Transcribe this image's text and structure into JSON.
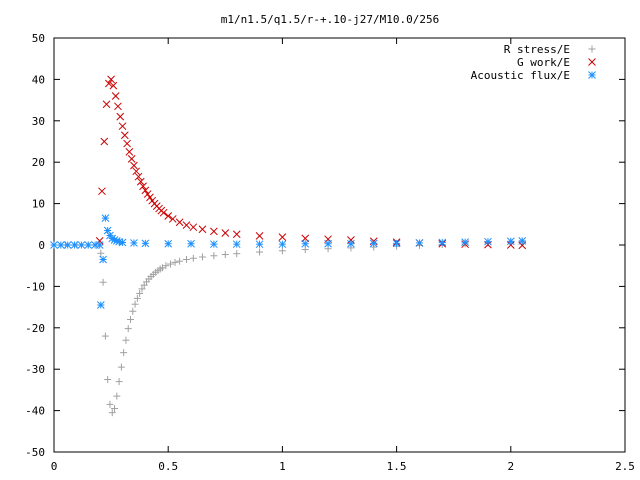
{
  "chart_data": {
    "type": "scatter",
    "title": "m1/n1.5/q1.5/r-+.10-j27/M10.0/256",
    "xlim": [
      0,
      2.5
    ],
    "ylim": [
      -50,
      50
    ],
    "x_ticks": [
      "0",
      "0.5",
      "1",
      "1.5",
      "2",
      "2.5"
    ],
    "y_ticks": [
      "50",
      "40",
      "30",
      "20",
      "10",
      "0",
      "-10",
      "-20",
      "-30",
      "-40",
      "-50"
    ],
    "grid": false,
    "legend_position": "top-right",
    "series": [
      {
        "name": "R stress/E",
        "marker": "+",
        "color": "#a0a0a0",
        "x": [
          0.0,
          0.05,
          0.1,
          0.15,
          0.2,
          0.205,
          0.215,
          0.225,
          0.235,
          0.245,
          0.255,
          0.265,
          0.275,
          0.285,
          0.295,
          0.305,
          0.315,
          0.325,
          0.335,
          0.345,
          0.355,
          0.365,
          0.375,
          0.385,
          0.395,
          0.405,
          0.415,
          0.425,
          0.435,
          0.445,
          0.455,
          0.465,
          0.475,
          0.49,
          0.51,
          0.53,
          0.55,
          0.58,
          0.61,
          0.65,
          0.7,
          0.75,
          0.8,
          0.9,
          1.0,
          1.1,
          1.2,
          1.3,
          1.4,
          1.5,
          1.6,
          1.7,
          1.8,
          1.9,
          2.0,
          2.05
        ],
        "y": [
          0,
          0,
          0,
          0,
          0,
          -2,
          -9,
          -22,
          -32.5,
          -38.5,
          -40.5,
          -39.5,
          -36.5,
          -33,
          -29.5,
          -26,
          -23,
          -20.2,
          -18,
          -16,
          -14.3,
          -12.9,
          -11.7,
          -10.6,
          -9.7,
          -8.9,
          -8.2,
          -7.6,
          -7.1,
          -6.6,
          -6.2,
          -5.8,
          -5.5,
          -5,
          -4.6,
          -4.2,
          -3.9,
          -3.5,
          -3.2,
          -2.9,
          -2.6,
          -2.3,
          -2.1,
          -1.7,
          -1.4,
          -1.1,
          -0.9,
          -0.7,
          -0.5,
          -0.3,
          -0.1,
          0.1,
          0.3,
          0.5,
          0.7,
          0.8
        ]
      },
      {
        "name": "G work/E",
        "marker": "x",
        "color": "#cc0000",
        "x": [
          0.2,
          0.21,
          0.22,
          0.23,
          0.24,
          0.25,
          0.26,
          0.27,
          0.28,
          0.29,
          0.3,
          0.31,
          0.32,
          0.33,
          0.34,
          0.35,
          0.36,
          0.37,
          0.38,
          0.39,
          0.4,
          0.41,
          0.42,
          0.43,
          0.44,
          0.45,
          0.46,
          0.47,
          0.48,
          0.5,
          0.52,
          0.55,
          0.58,
          0.61,
          0.65,
          0.7,
          0.75,
          0.8,
          0.9,
          1.0,
          1.1,
          1.2,
          1.3,
          1.4,
          1.5,
          1.6,
          1.7,
          1.8,
          1.9,
          2.0,
          2.05
        ],
        "y": [
          1,
          13,
          25,
          34,
          39,
          40,
          38.5,
          36,
          33.5,
          31,
          28.7,
          26.5,
          24.5,
          22.5,
          20.8,
          19.2,
          17.8,
          16.5,
          15.3,
          14.2,
          13.2,
          12.3,
          11.5,
          10.7,
          10,
          9.4,
          8.8,
          8.3,
          7.8,
          7,
          6.3,
          5.5,
          4.8,
          4.3,
          3.8,
          3.3,
          2.9,
          2.6,
          2.2,
          1.9,
          1.6,
          1.4,
          1.2,
          0.9,
          0.7,
          0.5,
          0.3,
          0.2,
          0.1,
          0,
          -0.1
        ]
      },
      {
        "name": "Acoustic flux/E",
        "marker": "*",
        "color": "#1e90ff",
        "x": [
          0.0,
          0.03,
          0.06,
          0.09,
          0.12,
          0.15,
          0.18,
          0.2,
          0.205,
          0.215,
          0.225,
          0.235,
          0.245,
          0.255,
          0.265,
          0.275,
          0.285,
          0.3,
          0.35,
          0.4,
          0.5,
          0.6,
          0.7,
          0.8,
          0.9,
          1.0,
          1.1,
          1.2,
          1.3,
          1.4,
          1.5,
          1.6,
          1.7,
          1.8,
          1.9,
          2.0,
          2.05
        ],
        "y": [
          0,
          0,
          0,
          0,
          0,
          0,
          0,
          0,
          -14.5,
          -3.5,
          6.5,
          3.5,
          2.3,
          1.6,
          1.2,
          1,
          0.8,
          0.6,
          0.5,
          0.4,
          0.3,
          0.3,
          0.2,
          0.2,
          0.2,
          0.2,
          0.3,
          0.3,
          0.3,
          0.4,
          0.4,
          0.5,
          0.6,
          0.7,
          0.8,
          0.9,
          1
        ]
      }
    ]
  }
}
